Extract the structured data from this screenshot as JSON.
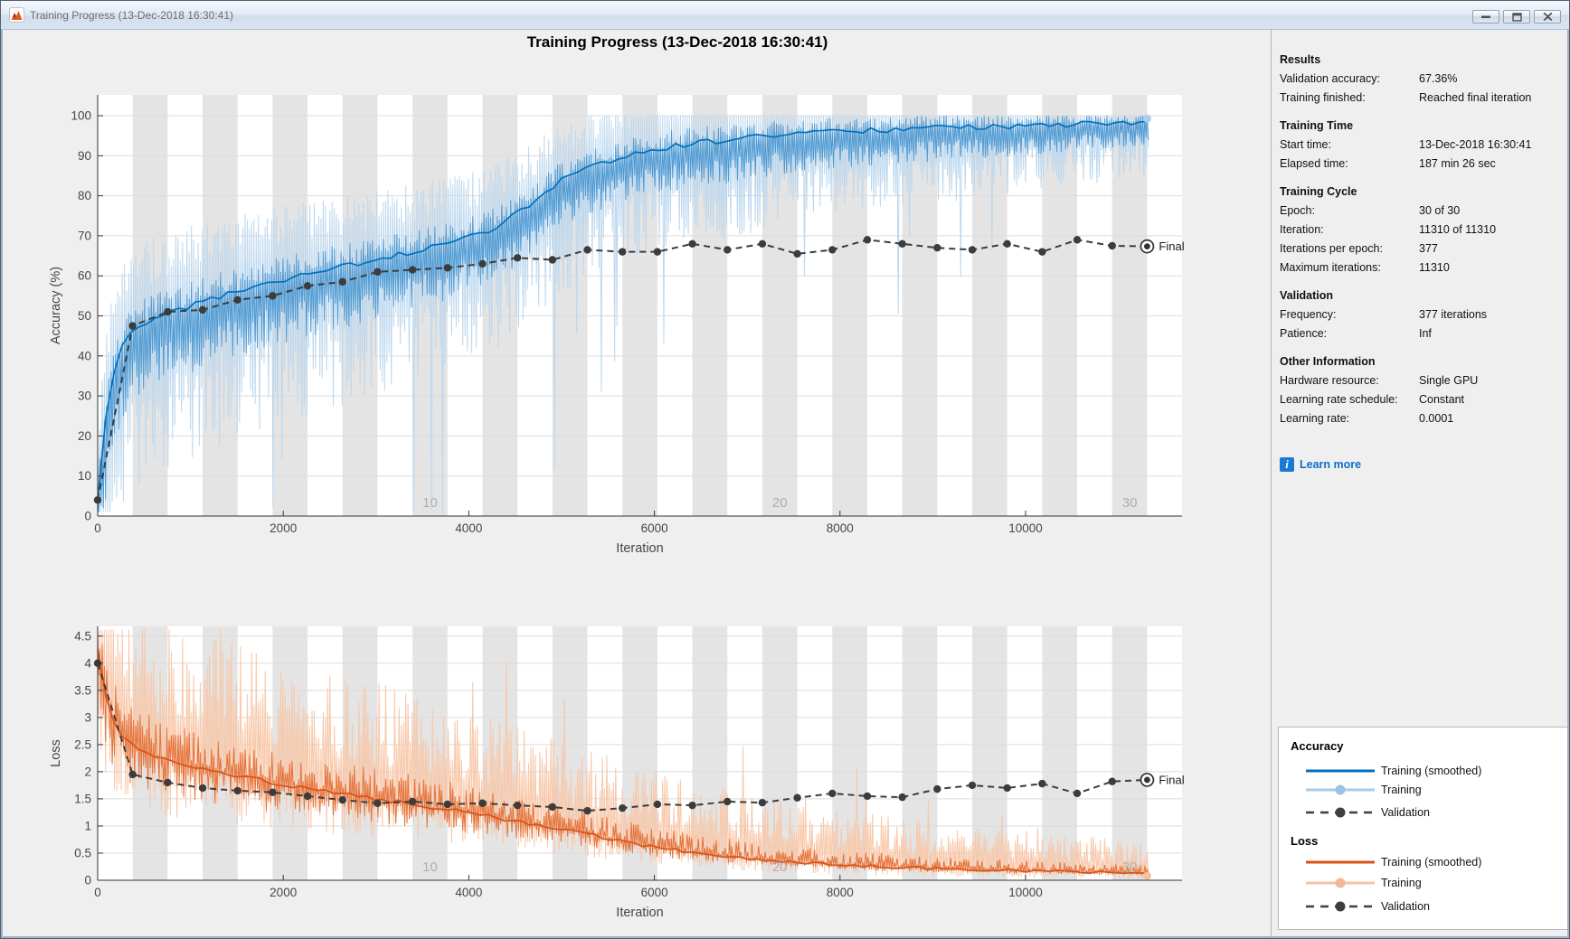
{
  "window": {
    "title": "Training Progress (13-Dec-2018 16:30:41)",
    "buttons": {
      "minimize": "minimize",
      "maximize": "maximize",
      "close": "close"
    }
  },
  "figure": {
    "heading": "Training Progress (13-Dec-2018 16:30:41)"
  },
  "panel": {
    "sections": [
      {
        "title": "Results",
        "rows": [
          {
            "label": "Validation accuracy:",
            "value": "67.36%"
          },
          {
            "label": "Training finished:",
            "value": "Reached final iteration"
          }
        ]
      },
      {
        "title": "Training Time",
        "rows": [
          {
            "label": "Start time:",
            "value": "13-Dec-2018 16:30:41"
          },
          {
            "label": "Elapsed time:",
            "value": "187 min 26 sec"
          }
        ]
      },
      {
        "title": "Training Cycle",
        "rows": [
          {
            "label": "Epoch:",
            "value": "30 of 30"
          },
          {
            "label": "Iteration:",
            "value": "11310 of 11310"
          },
          {
            "label": "Iterations per epoch:",
            "value": "377"
          },
          {
            "label": "Maximum iterations:",
            "value": "11310"
          }
        ]
      },
      {
        "title": "Validation",
        "rows": [
          {
            "label": "Frequency:",
            "value": "377 iterations"
          },
          {
            "label": "Patience:",
            "value": "Inf"
          }
        ]
      },
      {
        "title": "Other Information",
        "rows": [
          {
            "label": "Hardware resource:",
            "value": "Single GPU"
          },
          {
            "label": "Learning rate schedule:",
            "value": "Constant"
          },
          {
            "label": "Learning rate:",
            "value": "0.0001"
          }
        ]
      }
    ],
    "learn_more_label": "Learn more"
  },
  "legend": {
    "groups": [
      {
        "title": "Accuracy",
        "items": [
          {
            "label": "Training (smoothed)",
            "style": "solid",
            "color": "#0072bd"
          },
          {
            "label": "Training",
            "style": "solid-dot",
            "color": "#a8cbe6",
            "dot": "#9cc3e2"
          },
          {
            "label": "Validation",
            "style": "dashed-dot",
            "color": "#3f3f3f",
            "dot": "#3f3f3f"
          }
        ]
      },
      {
        "title": "Loss",
        "items": [
          {
            "label": "Training (smoothed)",
            "style": "solid",
            "color": "#d95319"
          },
          {
            "label": "Training",
            "style": "solid-dot",
            "color": "#f6c3a3",
            "dot": "#f3b795"
          },
          {
            "label": "Validation",
            "style": "dashed-dot",
            "color": "#3f3f3f",
            "dot": "#3f3f3f"
          }
        ]
      }
    ]
  },
  "chart_data": [
    {
      "id": "accuracy",
      "type": "line",
      "ylabel": "Accuracy (%)",
      "xlabel": "Iteration",
      "xlim": [
        0,
        11686
      ],
      "ylim": [
        0,
        105.2
      ],
      "xticks": [
        0,
        2000,
        4000,
        6000,
        8000,
        10000
      ],
      "yticks": [
        0,
        10,
        20,
        30,
        40,
        50,
        60,
        70,
        80,
        90,
        100
      ],
      "grid": true,
      "epochs": 30,
      "iterations_per_epoch": 377,
      "max_iteration": 11310,
      "epoch_tick_labels": [
        10,
        20,
        30
      ],
      "final_label": "Final",
      "smoothed": {
        "name": "Training (smoothed)",
        "color": "#0072bd",
        "points": [
          [
            0,
            4
          ],
          [
            100,
            28
          ],
          [
            250,
            42
          ],
          [
            400,
            47
          ],
          [
            700,
            50
          ],
          [
            1200,
            54
          ],
          [
            1800,
            58
          ],
          [
            2400,
            61
          ],
          [
            3000,
            64
          ],
          [
            3600,
            67
          ],
          [
            4200,
            71
          ],
          [
            4700,
            78
          ],
          [
            5000,
            84
          ],
          [
            5400,
            88
          ],
          [
            5800,
            91
          ],
          [
            6400,
            93
          ],
          [
            7200,
            95
          ],
          [
            8000,
            96
          ],
          [
            9000,
            97
          ],
          [
            10000,
            97.5
          ],
          [
            11310,
            98.5
          ]
        ]
      },
      "raw": {
        "name": "Training",
        "kind": "acc",
        "seed": 77,
        "colors": [
          "#bcd7ee",
          "#4f9ad3"
        ],
        "amp": [
          24,
          8
        ],
        "end_dot": {
          "x": 11310,
          "y": 99.3,
          "color": "#a9cfec"
        }
      },
      "validation": {
        "name": "Validation",
        "color": "#3c3c3c",
        "dashed": true,
        "points": [
          [
            0,
            4
          ],
          [
            377,
            47.5
          ],
          [
            754,
            51
          ],
          [
            1131,
            51.5
          ],
          [
            1508,
            54
          ],
          [
            1885,
            55
          ],
          [
            2262,
            57.5
          ],
          [
            2639,
            58.5
          ],
          [
            3016,
            61
          ],
          [
            3393,
            61.5
          ],
          [
            3770,
            62
          ],
          [
            4147,
            63
          ],
          [
            4524,
            64.5
          ],
          [
            4901,
            64
          ],
          [
            5278,
            66.5
          ],
          [
            5655,
            66
          ],
          [
            6032,
            66
          ],
          [
            6409,
            68
          ],
          [
            6786,
            66.5
          ],
          [
            7163,
            68
          ],
          [
            7540,
            65.5
          ],
          [
            7917,
            66.5
          ],
          [
            8294,
            69
          ],
          [
            8671,
            68
          ],
          [
            9048,
            67
          ],
          [
            9425,
            66.5
          ],
          [
            9802,
            68
          ],
          [
            10179,
            66
          ],
          [
            10556,
            69
          ],
          [
            10933,
            67.5
          ],
          [
            11310,
            67.36
          ]
        ]
      }
    },
    {
      "id": "loss",
      "type": "line",
      "ylabel": "Loss",
      "xlabel": "Iteration",
      "xlim": [
        0,
        11686
      ],
      "ylim": [
        0,
        4.68
      ],
      "xticks": [
        0,
        2000,
        4000,
        6000,
        8000,
        10000
      ],
      "yticks": [
        0,
        0.5,
        1,
        1.5,
        2,
        2.5,
        3,
        3.5,
        4,
        4.5
      ],
      "grid": true,
      "epochs": 30,
      "iterations_per_epoch": 377,
      "max_iteration": 11310,
      "epoch_tick_labels": [
        10,
        20,
        30
      ],
      "final_label": "Final",
      "smoothed": {
        "name": "Training (smoothed)",
        "color": "#d95319",
        "points": [
          [
            0,
            4.25
          ],
          [
            120,
            3.1
          ],
          [
            300,
            2.55
          ],
          [
            600,
            2.3
          ],
          [
            1000,
            2.1
          ],
          [
            1600,
            1.9
          ],
          [
            2200,
            1.7
          ],
          [
            2800,
            1.55
          ],
          [
            3400,
            1.4
          ],
          [
            4000,
            1.25
          ],
          [
            4600,
            1.05
          ],
          [
            5200,
            0.88
          ],
          [
            5800,
            0.66
          ],
          [
            6400,
            0.52
          ],
          [
            7000,
            0.4
          ],
          [
            7600,
            0.32
          ],
          [
            8400,
            0.25
          ],
          [
            9200,
            0.2
          ],
          [
            10200,
            0.17
          ],
          [
            11310,
            0.13
          ]
        ]
      },
      "raw": {
        "name": "Training",
        "kind": "loss",
        "seed": 99,
        "colors": [
          "#f8c7a8",
          "#e4743c"
        ],
        "amp": [
          1.1,
          0.3
        ],
        "end_dot": {
          "x": 11310,
          "y": 0.08,
          "color": "#f7bf9e"
        }
      },
      "validation": {
        "name": "Validation",
        "color": "#3c3c3c",
        "dashed": true,
        "points": [
          [
            0,
            4.0
          ],
          [
            377,
            1.95
          ],
          [
            754,
            1.8
          ],
          [
            1131,
            1.7
          ],
          [
            1508,
            1.65
          ],
          [
            1885,
            1.62
          ],
          [
            2262,
            1.55
          ],
          [
            2639,
            1.48
          ],
          [
            3016,
            1.42
          ],
          [
            3393,
            1.45
          ],
          [
            3770,
            1.4
          ],
          [
            4147,
            1.42
          ],
          [
            4524,
            1.38
          ],
          [
            4901,
            1.35
          ],
          [
            5278,
            1.28
          ],
          [
            5655,
            1.33
          ],
          [
            6032,
            1.4
          ],
          [
            6409,
            1.38
          ],
          [
            6786,
            1.45
          ],
          [
            7163,
            1.43
          ],
          [
            7540,
            1.52
          ],
          [
            7917,
            1.6
          ],
          [
            8294,
            1.55
          ],
          [
            8671,
            1.53
          ],
          [
            9048,
            1.68
          ],
          [
            9425,
            1.75
          ],
          [
            9802,
            1.7
          ],
          [
            10179,
            1.78
          ],
          [
            10556,
            1.6
          ],
          [
            10933,
            1.82
          ],
          [
            11310,
            1.85
          ]
        ]
      }
    }
  ]
}
